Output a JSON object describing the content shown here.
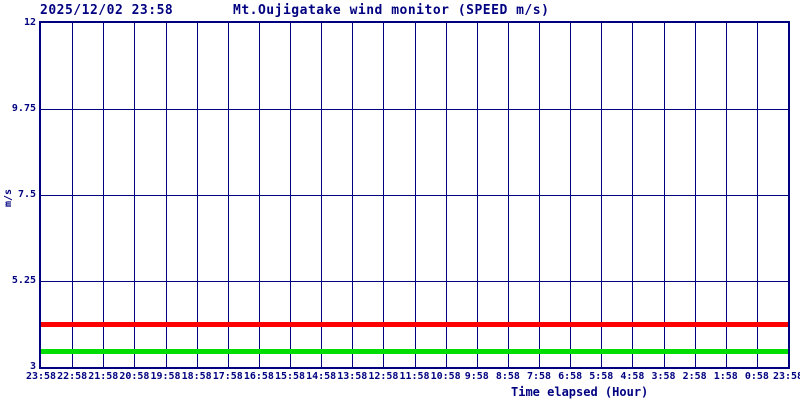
{
  "header": {
    "timestamp": "2025/12/02 23:58",
    "title": "Mt.Oujigatake wind monitor (SPEED m/s)"
  },
  "colors": {
    "axis": "#000080",
    "grid": "#000080",
    "series_red": "#ff0000",
    "series_green": "#00dd00",
    "background": "#ffffff"
  },
  "chart_data": {
    "type": "line",
    "title": "Mt.Oujigatake wind monitor (SPEED m/s)",
    "timestamp": "2025/12/02 23:58",
    "xlabel": "Time elapsed (Hour)",
    "ylabel": "m/s",
    "ylim": [
      3,
      12
    ],
    "ytick_labels": [
      "12",
      "9.75",
      "7.5",
      "5.25",
      "3"
    ],
    "ytick_values": [
      12,
      9.75,
      7.5,
      5.25,
      3
    ],
    "x_ticklabels": [
      "23:58",
      "22:58",
      "21:58",
      "20:58",
      "19:58",
      "18:58",
      "17:58",
      "16:58",
      "15:58",
      "14:58",
      "13:58",
      "12:58",
      "11:58",
      "10:58",
      "9:58",
      "8:58",
      "7:58",
      "6:58",
      "5:58",
      "4:58",
      "3:58",
      "2:58",
      "1:58",
      "0:58",
      "23:58"
    ],
    "grid": true,
    "legend": "none",
    "series": [
      {
        "name": "red-line",
        "color": "#ff0000",
        "values": [
          4.1,
          4.1,
          4.1,
          4.1,
          4.1,
          4.1,
          4.1,
          4.1,
          4.1,
          4.1,
          4.1,
          4.1,
          4.1,
          4.1,
          4.1,
          4.1,
          4.1,
          4.1,
          4.1,
          4.1,
          4.1,
          4.1,
          4.1,
          4.1,
          4.1
        ]
      },
      {
        "name": "green-line",
        "color": "#00dd00",
        "values": [
          3.4,
          3.4,
          3.4,
          3.4,
          3.4,
          3.4,
          3.4,
          3.4,
          3.4,
          3.4,
          3.4,
          3.4,
          3.4,
          3.4,
          3.4,
          3.4,
          3.4,
          3.4,
          3.4,
          3.4,
          3.4,
          3.4,
          3.4,
          3.4,
          3.4
        ]
      }
    ]
  }
}
